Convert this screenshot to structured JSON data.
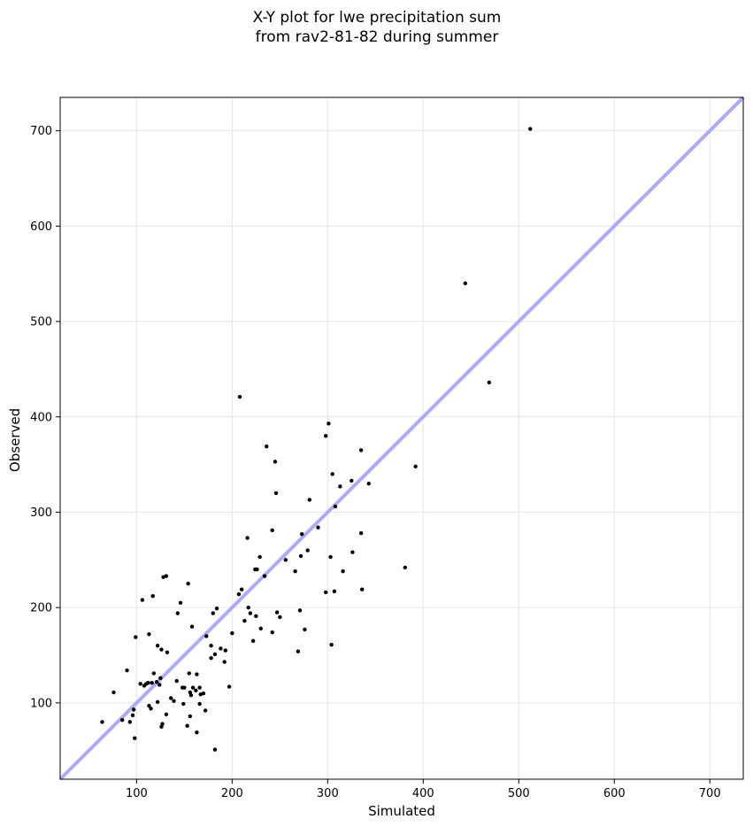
{
  "chart_data": {
    "type": "scatter",
    "title": "X-Y plot for lwe precipitation sum",
    "subtitle": "from rav2-81-82 during summer",
    "xlabel": "Simulated",
    "ylabel": "Observed",
    "xlim": [
      20,
      735
    ],
    "ylim": [
      20,
      735
    ],
    "xticks": [
      100,
      200,
      300,
      400,
      500,
      600,
      700
    ],
    "yticks": [
      100,
      200,
      300,
      400,
      500,
      600,
      700
    ],
    "grid": true,
    "reference_line": {
      "type": "y=x",
      "color": "#aaaaff"
    },
    "marker_color": "#000000",
    "points": [
      [
        64,
        80
      ],
      [
        76,
        111
      ],
      [
        85,
        82
      ],
      [
        90,
        134
      ],
      [
        93,
        80
      ],
      [
        96,
        87
      ],
      [
        97,
        93
      ],
      [
        98,
        63
      ],
      [
        99,
        169
      ],
      [
        104,
        120
      ],
      [
        106,
        208
      ],
      [
        108,
        118
      ],
      [
        110,
        120
      ],
      [
        112,
        121
      ],
      [
        113,
        172
      ],
      [
        113,
        97
      ],
      [
        115,
        94
      ],
      [
        116,
        121
      ],
      [
        117,
        212
      ],
      [
        118,
        131
      ],
      [
        121,
        122
      ],
      [
        122,
        101
      ],
      [
        122,
        160
      ],
      [
        124,
        119
      ],
      [
        125,
        126
      ],
      [
        126,
        75
      ],
      [
        126,
        156
      ],
      [
        127,
        78
      ],
      [
        128,
        232
      ],
      [
        131,
        233
      ],
      [
        131,
        88
      ],
      [
        132,
        153
      ],
      [
        136,
        105
      ],
      [
        139,
        102
      ],
      [
        142,
        123
      ],
      [
        143,
        194
      ],
      [
        146,
        205
      ],
      [
        148,
        116
      ],
      [
        149,
        99
      ],
      [
        150,
        116
      ],
      [
        153,
        76
      ],
      [
        154,
        225
      ],
      [
        155,
        131
      ],
      [
        156,
        111
      ],
      [
        156,
        86
      ],
      [
        157,
        108
      ],
      [
        158,
        180
      ],
      [
        159,
        116
      ],
      [
        162,
        113
      ],
      [
        163,
        69
      ],
      [
        163,
        130
      ],
      [
        166,
        116
      ],
      [
        166,
        99
      ],
      [
        167,
        109
      ],
      [
        170,
        110
      ],
      [
        172,
        92
      ],
      [
        173,
        170
      ],
      [
        178,
        160
      ],
      [
        178,
        147
      ],
      [
        180,
        194
      ],
      [
        182,
        51
      ],
      [
        182,
        151
      ],
      [
        184,
        199
      ],
      [
        188,
        157
      ],
      [
        192,
        143
      ],
      [
        193,
        155
      ],
      [
        197,
        117
      ],
      [
        200,
        173
      ],
      [
        207,
        214
      ],
      [
        208,
        421
      ],
      [
        210,
        219
      ],
      [
        213,
        186
      ],
      [
        216,
        273
      ],
      [
        217,
        200
      ],
      [
        219,
        194
      ],
      [
        222,
        165
      ],
      [
        224,
        240
      ],
      [
        225,
        191
      ],
      [
        226,
        240
      ],
      [
        229,
        253
      ],
      [
        230,
        178
      ],
      [
        234,
        233
      ],
      [
        236,
        369
      ],
      [
        242,
        281
      ],
      [
        242,
        174
      ],
      [
        245,
        353
      ],
      [
        246,
        320
      ],
      [
        247,
        195
      ],
      [
        250,
        190
      ],
      [
        256,
        250
      ],
      [
        266,
        238
      ],
      [
        269,
        154
      ],
      [
        271,
        197
      ],
      [
        272,
        254
      ],
      [
        273,
        277
      ],
      [
        276,
        177
      ],
      [
        279,
        260
      ],
      [
        281,
        313
      ],
      [
        290,
        284
      ],
      [
        298,
        216
      ],
      [
        298,
        380
      ],
      [
        301,
        393
      ],
      [
        303,
        253
      ],
      [
        304,
        161
      ],
      [
        305,
        340
      ],
      [
        307,
        217
      ],
      [
        308,
        306
      ],
      [
        313,
        327
      ],
      [
        316,
        238
      ],
      [
        325,
        333
      ],
      [
        326,
        258
      ],
      [
        335,
        365
      ],
      [
        335,
        278
      ],
      [
        336,
        219
      ],
      [
        343,
        330
      ],
      [
        381,
        242
      ],
      [
        392,
        348
      ],
      [
        444,
        540
      ],
      [
        469,
        436
      ],
      [
        512,
        702
      ]
    ]
  }
}
